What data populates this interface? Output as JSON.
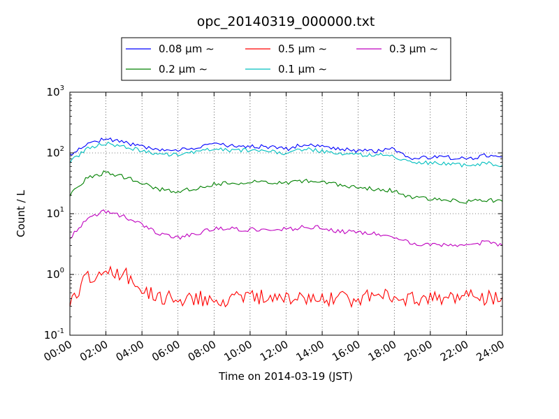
{
  "chart_data": {
    "type": "line",
    "title": "opc_20140319_000000.txt",
    "xlabel": "Time on 2014-03-19 (JST)",
    "ylabel": "Count / L",
    "yscale": "log",
    "xlim": [
      0,
      24
    ],
    "ylim": [
      0.1,
      1000
    ],
    "grid": true,
    "legend_position": "top",
    "x_tick_labels": [
      "00:00",
      "02:00",
      "04:00",
      "06:00",
      "08:00",
      "10:00",
      "12:00",
      "14:00",
      "16:00",
      "18:00",
      "20:00",
      "22:00",
      "24:00"
    ],
    "y_ticks": [
      {
        "base": "10",
        "exp": "-1"
      },
      {
        "base": "10",
        "exp": "0"
      },
      {
        "base": "10",
        "exp": "1"
      },
      {
        "base": "10",
        "exp": "2"
      },
      {
        "base": "10",
        "exp": "3"
      }
    ],
    "x": [
      0,
      1,
      2,
      3,
      4,
      5,
      6,
      7,
      8,
      9,
      10,
      11,
      12,
      13,
      14,
      15,
      16,
      17,
      18,
      19,
      20,
      21,
      22,
      23,
      24
    ],
    "series": [
      {
        "name": "0.08 μm ∼",
        "color": "#0000ff",
        "values": [
          95,
          140,
          170,
          150,
          125,
          108,
          110,
          125,
          140,
          130,
          130,
          125,
          115,
          140,
          130,
          115,
          110,
          105,
          115,
          80,
          85,
          85,
          80,
          90,
          85
        ]
      },
      {
        "name": "0.2 μm ∼",
        "color": "#008000",
        "values": [
          20,
          40,
          48,
          40,
          32,
          25,
          23,
          26,
          31,
          32,
          33,
          33,
          32,
          35,
          33,
          29,
          27,
          25,
          24,
          18,
          18,
          17,
          16,
          17,
          16
        ]
      },
      {
        "name": "0.5 μm ∼",
        "color": "#ff0000",
        "values": [
          0.4,
          0.9,
          1.3,
          1.0,
          0.6,
          0.42,
          0.4,
          0.42,
          0.4,
          0.38,
          0.4,
          0.42,
          0.4,
          0.42,
          0.42,
          0.4,
          0.4,
          0.42,
          0.42,
          0.4,
          0.38,
          0.4,
          0.4,
          0.42,
          0.42
        ]
      },
      {
        "name": "0.1 μm ∼",
        "color": "#00bfbf",
        "values": [
          70,
          120,
          145,
          128,
          107,
          95,
          93,
          105,
          115,
          112,
          110,
          108,
          100,
          115,
          108,
          100,
          95,
          92,
          88,
          70,
          68,
          65,
          62,
          68,
          62
        ]
      },
      {
        "name": "0.3 μm ∼",
        "color": "#bf00bf",
        "values": [
          4,
          8.5,
          11,
          9,
          6.5,
          4.5,
          4,
          4.6,
          5.8,
          5.6,
          5.5,
          5.7,
          5.5,
          6,
          5.9,
          5.1,
          4.9,
          4.6,
          4.2,
          3.1,
          3.1,
          3,
          2.9,
          3.4,
          3
        ]
      }
    ]
  }
}
